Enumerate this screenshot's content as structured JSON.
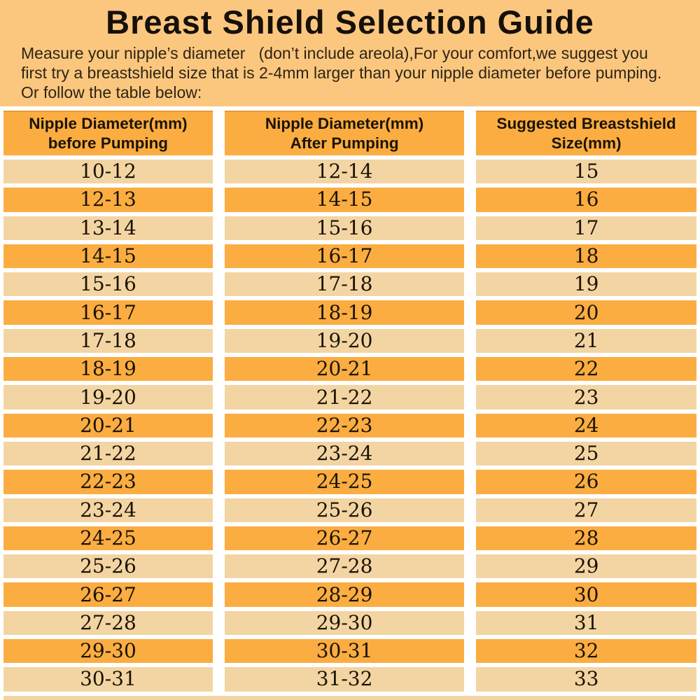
{
  "title": "Breast Shield Selection Guide",
  "intro": "Measure your nipple’s diameter   (don’t include areola),For your comfort,we suggest you\nfirst try a breastshield size that is 2-4mm larger than your nipple diameter before pumping.\nOr follow the table below:",
  "table": {
    "headers": [
      {
        "line1": "Nipple Diameter(mm)",
        "line2": "before Pumping"
      },
      {
        "line1": "Nipple Diameter(mm)",
        "line2": "After Pumping"
      },
      {
        "line1": "Suggested Breastshield",
        "line2": "Size(mm)"
      }
    ],
    "rows": [
      [
        "10-12",
        "12-14",
        "15"
      ],
      [
        "12-13",
        "14-15",
        "16"
      ],
      [
        "13-14",
        "15-16",
        "17"
      ],
      [
        "14-15",
        "16-17",
        "18"
      ],
      [
        "15-16",
        "17-18",
        "19"
      ],
      [
        "16-17",
        "18-19",
        "20"
      ],
      [
        "17-18",
        "19-20",
        "21"
      ],
      [
        "18-19",
        "20-21",
        "22"
      ],
      [
        "19-20",
        "21-22",
        "23"
      ],
      [
        "20-21",
        "22-23",
        "24"
      ],
      [
        "21-22",
        "23-24",
        "25"
      ],
      [
        "22-23",
        "24-25",
        "26"
      ],
      [
        "23-24",
        "25-26",
        "27"
      ],
      [
        "24-25",
        "26-27",
        "28"
      ],
      [
        "25-26",
        "27-28",
        "29"
      ],
      [
        "26-27",
        "28-29",
        "30"
      ],
      [
        "27-28",
        "29-30",
        "31"
      ],
      [
        "29-30",
        "30-31",
        "32"
      ],
      [
        "30-31",
        "31-32",
        "33"
      ]
    ]
  },
  "colors": {
    "page_background": "#fbc77e",
    "header_orange": "#fbad42",
    "row_orange": "#fbad42",
    "row_tan": "#f3d5a3",
    "gap_white": "#ffffff",
    "text_black": "#1b1306"
  }
}
